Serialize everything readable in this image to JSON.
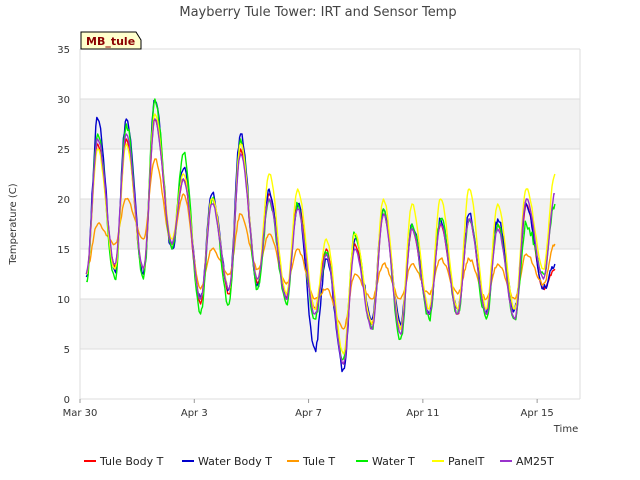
{
  "chart_data": {
    "type": "line",
    "title": "Mayberry Tule Tower: IRT and Sensor Temp",
    "site_label": "MB_tule",
    "xlabel": "Time",
    "ylabel": "Temperature (C)",
    "ylim": [
      0,
      35
    ],
    "xlim": [
      0,
      17.5
    ],
    "x_unit": "days since Mar 30",
    "yticks": [
      0,
      5,
      10,
      15,
      20,
      25,
      30,
      35
    ],
    "xticks": [
      {
        "value": 0,
        "label": "Mar 30"
      },
      {
        "value": 4,
        "label": "Apr 3"
      },
      {
        "value": 8,
        "label": "Apr 7"
      },
      {
        "value": 12,
        "label": "Apr 11"
      },
      {
        "value": 16,
        "label": "Apr 15"
      }
    ],
    "grid": true,
    "legend_position": "bottom",
    "daily_extremes": {
      "days": [
        0,
        1,
        2,
        3,
        4,
        5,
        6,
        7,
        8,
        9,
        10,
        11,
        12,
        13,
        14,
        15,
        16
      ],
      "min_day_offset": 0.22,
      "max_day_offset": 0.62,
      "note": "Values below are estimated daily minima (near dawn) and maxima (mid-afternoon) read from the plot"
    },
    "series": [
      {
        "name": "Tule Body T",
        "color": "#ff0000",
        "dash": "",
        "min": [
          12.5,
          13.2,
          12.5,
          15.5,
          9.5,
          10.5,
          11.5,
          10.0,
          9.0,
          3.5,
          7.5,
          7.0,
          8.5,
          8.5,
          8.5,
          8.0,
          11.0
        ],
        "max": [
          25.5,
          26.0,
          28.0,
          22.0,
          20.0,
          25.0,
          20.5,
          19.5,
          15.0,
          15.5,
          18.5,
          17.0,
          17.5,
          18.0,
          17.5,
          19.5,
          13.0
        ]
      },
      {
        "name": "Water Body T",
        "color": "#0000cc",
        "dash": "",
        "min": [
          12.2,
          12.8,
          12.5,
          15.0,
          10.0,
          11.0,
          11.5,
          10.0,
          5.0,
          3.0,
          8.0,
          7.5,
          8.5,
          9.0,
          8.5,
          9.0,
          11.0
        ],
        "max": [
          28.0,
          28.0,
          29.8,
          23.0,
          20.5,
          26.5,
          21.0,
          19.5,
          14.0,
          16.0,
          19.0,
          17.5,
          18.0,
          18.5,
          18.0,
          19.5,
          13.5
        ]
      },
      {
        "name": "Tule T",
        "color": "#ff9900",
        "dash": "",
        "min": [
          12.8,
          15.5,
          16.0,
          15.5,
          11.0,
          12.5,
          13.0,
          11.5,
          10.0,
          7.0,
          10.0,
          10.0,
          10.5,
          10.5,
          10.0,
          10.0,
          11.5
        ],
        "max": [
          17.5,
          20.0,
          24.0,
          20.5,
          15.0,
          18.5,
          16.5,
          15.0,
          11.0,
          12.5,
          13.5,
          13.5,
          14.0,
          14.0,
          13.5,
          14.5,
          15.5
        ]
      },
      {
        "name": "Water T",
        "color": "#00ee00",
        "dash": "",
        "min": [
          11.8,
          12.0,
          12.0,
          15.0,
          8.5,
          9.5,
          11.0,
          9.5,
          8.0,
          4.0,
          7.0,
          6.0,
          8.0,
          8.5,
          8.0,
          8.0,
          12.5
        ],
        "max": [
          26.5,
          27.5,
          30.0,
          24.5,
          20.0,
          26.0,
          20.0,
          19.5,
          14.5,
          16.5,
          19.0,
          17.5,
          18.0,
          18.0,
          17.5,
          17.5,
          19.5
        ]
      },
      {
        "name": "PanelT",
        "color": "#ffff00",
        "dash": "",
        "min": [
          12.5,
          13.0,
          13.0,
          16.0,
          10.0,
          11.0,
          12.0,
          10.5,
          9.0,
          4.5,
          7.5,
          7.0,
          9.0,
          9.0,
          9.0,
          9.0,
          13.0
        ],
        "max": [
          25.0,
          25.5,
          28.5,
          22.5,
          20.0,
          25.5,
          22.5,
          21.0,
          16.0,
          16.5,
          20.0,
          19.5,
          20.0,
          21.0,
          19.5,
          21.0,
          22.5
        ]
      },
      {
        "name": "AM25T",
        "color": "#9933cc",
        "dash": "",
        "min": [
          12.5,
          13.5,
          13.0,
          15.5,
          10.0,
          11.0,
          12.0,
          10.0,
          8.5,
          3.5,
          7.0,
          6.5,
          8.5,
          8.5,
          8.5,
          8.0,
          12.0
        ],
        "max": [
          26.0,
          26.5,
          28.0,
          22.0,
          19.5,
          24.5,
          20.0,
          19.0,
          14.5,
          15.0,
          18.5,
          17.0,
          17.5,
          18.0,
          17.0,
          20.0,
          20.5
        ]
      }
    ]
  }
}
